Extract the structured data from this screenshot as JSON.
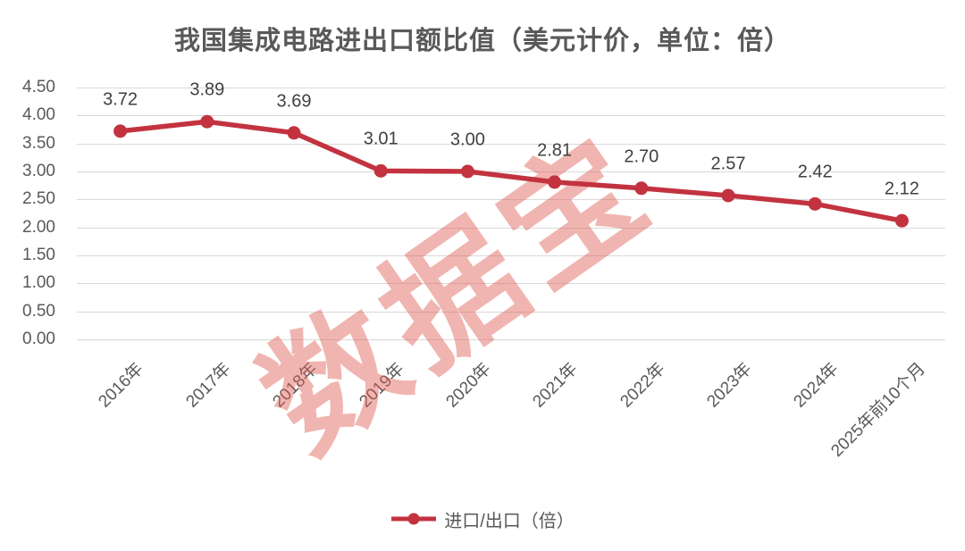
{
  "title": "我国集成电路进出口额比值（美元计价，单位：倍）",
  "watermark": "数据宝",
  "legend": {
    "label": "进口/出口（倍）"
  },
  "colors": {
    "line": "#C2333F",
    "grid": "#D9D9D9",
    "title_text": "#595959",
    "axis_text": "#595959",
    "data_label_text": "#404040",
    "watermark": "#E05C52",
    "background": "#FFFFFF"
  },
  "chart_data": {
    "type": "line",
    "title": "我国集成电路进出口额比值（美元计价，单位：倍）",
    "categories": [
      "2016年",
      "2017年",
      "2018年",
      "2019年",
      "2020年",
      "2021年",
      "2022年",
      "2023年",
      "2024年",
      "2025年前10个月"
    ],
    "series": [
      {
        "name": "进口/出口（倍）",
        "values": [
          3.72,
          3.89,
          3.69,
          3.01,
          3.0,
          2.81,
          2.7,
          2.57,
          2.42,
          2.12
        ]
      }
    ],
    "data_labels": [
      "3.72",
      "3.89",
      "3.69",
      "3.01",
      "3.00",
      "2.81",
      "2.70",
      "2.57",
      "2.42",
      "2.12"
    ],
    "xlabel": "",
    "ylabel": "",
    "ylim": [
      0,
      4.5
    ],
    "ytick_step": 0.5,
    "yticks": [
      "4.50",
      "4.00",
      "3.50",
      "3.00",
      "2.50",
      "2.00",
      "1.50",
      "1.00",
      "0.50",
      "0.00"
    ],
    "grid": true,
    "legend_position": "bottom",
    "marker": "circle"
  }
}
